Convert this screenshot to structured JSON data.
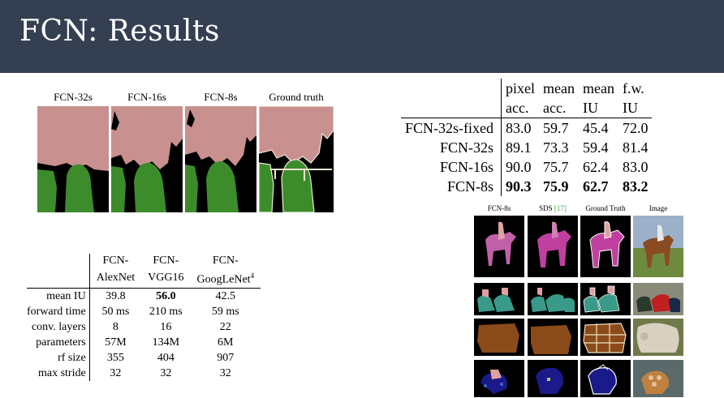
{
  "slide": {
    "title": "FCN: Results"
  },
  "segmentation_panel": {
    "labels": [
      "FCN-32s",
      "FCN-16s",
      "FCN-8s",
      "Ground truth"
    ]
  },
  "table_right": {
    "headers": [
      {
        "line1": "pixel",
        "line2": "acc."
      },
      {
        "line1": "mean",
        "line2": "acc."
      },
      {
        "line1": "mean",
        "line2": "IU"
      },
      {
        "line1": "f.w.",
        "line2": "IU"
      }
    ],
    "rows": [
      {
        "label": "FCN-32s-fixed",
        "values": [
          "83.0",
          "59.7",
          "45.4",
          "72.0"
        ]
      },
      {
        "label": "FCN-32s",
        "values": [
          "89.1",
          "73.3",
          "59.4",
          "81.4"
        ]
      },
      {
        "label": "FCN-16s",
        "values": [
          "90.0",
          "75.7",
          "62.4",
          "83.0"
        ]
      },
      {
        "label": "FCN-8s",
        "values": [
          "90.3",
          "75.9",
          "62.7",
          "83.2"
        ]
      }
    ]
  },
  "table_left": {
    "headers": [
      {
        "line1": "FCN-",
        "line2": "AlexNet",
        "sup": ""
      },
      {
        "line1": "FCN-",
        "line2": "VGG16",
        "sup": ""
      },
      {
        "line1": "FCN-",
        "line2": "GoogLeNet",
        "sup": "4"
      }
    ],
    "rows": [
      {
        "label": "mean IU",
        "values": [
          "39.8",
          "56.0",
          "42.5"
        ]
      },
      {
        "label": "forward time",
        "values": [
          "50 ms",
          "210 ms",
          "59 ms"
        ]
      },
      {
        "label": "conv. layers",
        "values": [
          "8",
          "16",
          "22"
        ]
      },
      {
        "label": "parameters",
        "values": [
          "57M",
          "134M",
          "6M"
        ]
      },
      {
        "label": "rf size",
        "values": [
          "355",
          "404",
          "907"
        ]
      },
      {
        "label": "max stride",
        "values": [
          "32",
          "32",
          "32"
        ]
      }
    ]
  },
  "examples": {
    "headers": {
      "fcn": "FCN-8s",
      "sds": "SDS ",
      "sds_cite": "[17]",
      "gt": "Ground Truth",
      "image": "Image"
    }
  }
}
